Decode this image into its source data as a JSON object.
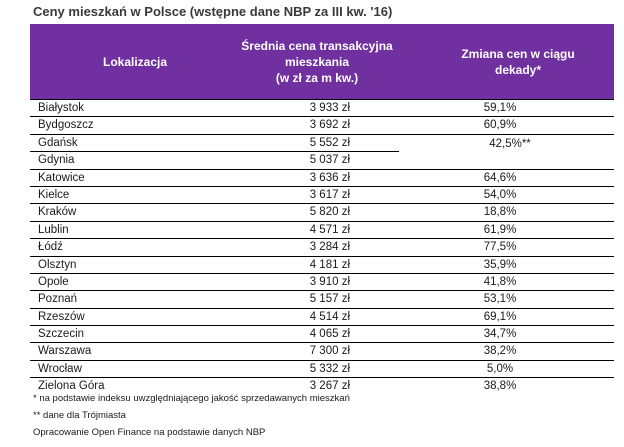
{
  "title": "Ceny mieszkań w Polsce (wstępne dane NBP za III kw. '16)",
  "header": {
    "col1": "Lokalizacja",
    "col2": "Średnia cena transakcyjna\nmieszkania\n(w zł za m kw.)",
    "col3": "Zmiana cen w ciągu\ndekady*"
  },
  "rows": [
    {
      "city": "Białystok",
      "price": "3 933 zł",
      "change": "59,1%"
    },
    {
      "city": "Bydgoszcz",
      "price": "3 692 zł",
      "change": "60,9%"
    },
    {
      "city": "Gdańsk",
      "price": "5 552 zł",
      "change": ""
    },
    {
      "city": "Gdynia",
      "price": "5 037 zł",
      "change": ""
    },
    {
      "city": "Katowice",
      "price": "3 636 zł",
      "change": "64,6%"
    },
    {
      "city": "Kielce",
      "price": "3 617 zł",
      "change": "54,0%"
    },
    {
      "city": "Kraków",
      "price": "5 820 zł",
      "change": "18,8%"
    },
    {
      "city": "Lublin",
      "price": "4 571 zł",
      "change": "61,9%"
    },
    {
      "city": "Łódź",
      "price": "3 284 zł",
      "change": "77,5%"
    },
    {
      "city": "Olsztyn",
      "price": "4 181 zł",
      "change": "35,9%"
    },
    {
      "city": "Opole",
      "price": "3 910 zł",
      "change": "41,8%"
    },
    {
      "city": "Poznań",
      "price": "5 157 zł",
      "change": "53,1%"
    },
    {
      "city": "Rzeszów",
      "price": "4 514 zł",
      "change": "69,1%"
    },
    {
      "city": "Szczecin",
      "price": "4 065 zł",
      "change": "34,7%"
    },
    {
      "city": "Warszawa",
      "price": "7 300 zł",
      "change": "38,2%"
    },
    {
      "city": "Wrocław",
      "price": "5 332 zł",
      "change": "5,0%"
    },
    {
      "city": "Zielona Góra",
      "price": "3 267 zł",
      "change": "38,8%"
    }
  ],
  "merged": {
    "change": "42,5%**"
  },
  "footnotes": [
    "* na podstawie indeksu uwzględniającego jakość sprzedawanych mieszkań",
    "** dane dla Trójmiasta",
    "Opracowanie Open Finance na podstawie danych NBP"
  ]
}
